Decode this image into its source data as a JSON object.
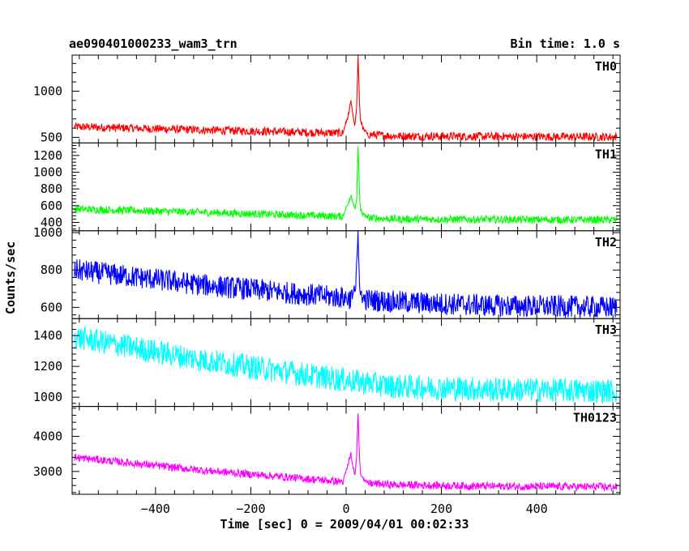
{
  "chart_data": {
    "type": "line",
    "title": "ae090401000233_wam3_trn",
    "subtitle": "Bin time: 1.0 s",
    "xlabel": "Time [sec] 0 = 2009/04/01 00:02:33",
    "ylabel": "Counts/sec",
    "xlim": [
      -575,
      575
    ],
    "xticks": [
      -400,
      -200,
      0,
      200,
      400
    ],
    "grid": false,
    "panels": [
      {
        "name": "TH0",
        "color": "#ff0000",
        "ylim": [
          440,
          1390
        ],
        "yticks": [
          500,
          1000
        ],
        "baseline": {
          "x": [
            -570,
            -300,
            0,
            100,
            300,
            570
          ],
          "y": [
            615,
            580,
            545,
            515,
            510,
            505
          ]
        },
        "noise_amplitude": 45,
        "burst": {
          "x": [
            -5,
            5,
            10,
            18,
            22,
            25,
            28,
            30,
            35,
            45
          ],
          "y": [
            580,
            750,
            880,
            620,
            800,
            1390,
            880,
            700,
            600,
            530
          ]
        }
      },
      {
        "name": "TH1",
        "color": "#00ff00",
        "ylim": [
          300,
          1350
        ],
        "yticks": [
          400,
          600,
          800,
          1000,
          1200
        ],
        "baseline": {
          "x": [
            -570,
            -300,
            0,
            100,
            300,
            570
          ],
          "y": [
            560,
            520,
            470,
            440,
            435,
            430
          ]
        },
        "noise_amplitude": 45,
        "burst": {
          "x": [
            -5,
            5,
            10,
            18,
            22,
            25,
            28,
            30,
            35,
            45
          ],
          "y": [
            500,
            650,
            720,
            560,
            650,
            1320,
            760,
            560,
            500,
            460
          ]
        }
      },
      {
        "name": "TH2",
        "color": "#0000ff",
        "ylim": [
          540,
          1010
        ],
        "yticks": [
          600,
          800,
          1000
        ],
        "baseline": {
          "x": [
            -570,
            -300,
            0,
            100,
            300,
            570
          ],
          "y": [
            800,
            720,
            650,
            630,
            610,
            600
          ]
        },
        "noise_amplitude": 60,
        "burst": {
          "x": [
            10,
            20,
            25,
            28,
            30,
            35
          ],
          "y": [
            660,
            700,
            1000,
            740,
            680,
            640
          ]
        }
      },
      {
        "name": "TH3",
        "color": "#00ffff",
        "ylim": [
          940,
          1510
        ],
        "yticks": [
          1000,
          1200,
          1400
        ],
        "baseline": {
          "x": [
            -570,
            -300,
            0,
            100,
            300,
            570
          ],
          "y": [
            1390,
            1240,
            1110,
            1070,
            1050,
            1040
          ]
        },
        "noise_amplitude": 80,
        "burst": null
      },
      {
        "name": "TH0123",
        "color": "#ff00ff",
        "ylim": [
          2350,
          4850
        ],
        "yticks": [
          3000,
          4000
        ],
        "baseline": {
          "x": [
            -570,
            -300,
            0,
            100,
            300,
            570
          ],
          "y": [
            3400,
            3030,
            2700,
            2620,
            2580,
            2560
          ]
        },
        "noise_amplitude": 110,
        "burst": {
          "x": [
            -5,
            5,
            10,
            18,
            22,
            25,
            28,
            30,
            35,
            45
          ],
          "y": [
            2780,
            3250,
            3500,
            2900,
            3400,
            4700,
            3400,
            2950,
            2800,
            2680
          ]
        }
      }
    ]
  }
}
